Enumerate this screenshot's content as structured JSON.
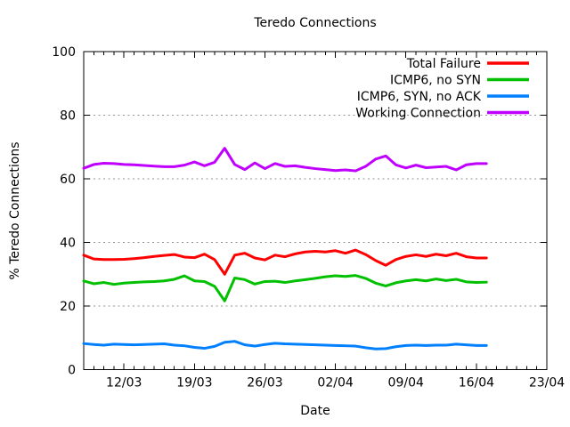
{
  "chart_data": {
    "type": "line",
    "title": "Teredo Connections",
    "xlabel": "Date",
    "ylabel": "% Teredo Connections",
    "ylim": [
      0,
      100
    ],
    "y_ticks": [
      0,
      20,
      40,
      60,
      80,
      100
    ],
    "grid": "horizontal-dotted",
    "grid_color": "#919191",
    "frame_color": "#000000",
    "legend_position": "top-right-inside",
    "x_axis": {
      "unit": "days",
      "range_days": [
        0,
        46
      ],
      "minor_tick_every_days": 1,
      "major_ticks": [
        {
          "label": "12/03",
          "day": 4
        },
        {
          "label": "19/03",
          "day": 11
        },
        {
          "label": "26/03",
          "day": 18
        },
        {
          "label": "02/04",
          "day": 25
        },
        {
          "label": "09/04",
          "day": 32
        },
        {
          "label": "16/04",
          "day": 39
        },
        {
          "label": "23/04",
          "day": 46
        }
      ]
    },
    "sampling": {
      "start_day": 0,
      "interval_days": 1,
      "points": 41
    },
    "series": [
      {
        "name": "Total Failure",
        "color": "#ff0000",
        "values": [
          36.0,
          34.8,
          34.6,
          34.6,
          34.7,
          34.9,
          35.2,
          35.6,
          35.9,
          36.2,
          35.4,
          35.2,
          36.3,
          34.6,
          30.0,
          36.0,
          36.6,
          35.1,
          34.5,
          36.0,
          35.5,
          36.4,
          37.0,
          37.2,
          37.0,
          37.4,
          36.6,
          37.6,
          36.2,
          34.3,
          32.8,
          34.6,
          35.6,
          36.1,
          35.6,
          36.3,
          35.8,
          36.6,
          35.5,
          35.1,
          35.1
        ]
      },
      {
        "name": "ICMP6, no SYN",
        "color": "#00c000",
        "values": [
          27.9,
          27.0,
          27.4,
          26.8,
          27.2,
          27.4,
          27.6,
          27.7,
          27.9,
          28.4,
          29.5,
          27.9,
          27.7,
          26.2,
          21.6,
          28.8,
          28.3,
          26.9,
          27.7,
          27.8,
          27.4,
          27.9,
          28.3,
          28.7,
          29.2,
          29.5,
          29.3,
          29.6,
          28.7,
          27.2,
          26.3,
          27.3,
          27.9,
          28.3,
          27.9,
          28.5,
          28.0,
          28.4,
          27.6,
          27.4,
          27.5
        ]
      },
      {
        "name": "ICMP6, SYN, no ACK",
        "color": "#0080ff",
        "values": [
          8.2,
          7.9,
          7.7,
          8.0,
          7.9,
          7.8,
          7.9,
          8.0,
          8.1,
          7.7,
          7.5,
          7.0,
          6.7,
          7.3,
          8.6,
          8.9,
          7.8,
          7.4,
          7.9,
          8.3,
          8.1,
          8.0,
          7.9,
          7.8,
          7.7,
          7.6,
          7.5,
          7.4,
          6.9,
          6.5,
          6.6,
          7.2,
          7.6,
          7.7,
          7.6,
          7.7,
          7.7,
          8.0,
          7.8,
          7.6,
          7.6
        ]
      },
      {
        "name": "Working Connection",
        "color": "#c000ff",
        "values": [
          63.3,
          64.5,
          64.9,
          64.8,
          64.5,
          64.4,
          64.2,
          64.0,
          63.8,
          63.8,
          64.3,
          65.3,
          64.1,
          65.2,
          69.6,
          64.5,
          62.9,
          65.0,
          63.2,
          64.8,
          63.9,
          64.1,
          63.6,
          63.2,
          62.9,
          62.6,
          62.8,
          62.5,
          63.9,
          66.2,
          67.2,
          64.4,
          63.4,
          64.3,
          63.5,
          63.7,
          63.9,
          62.8,
          64.4,
          64.8,
          64.8
        ]
      }
    ]
  }
}
